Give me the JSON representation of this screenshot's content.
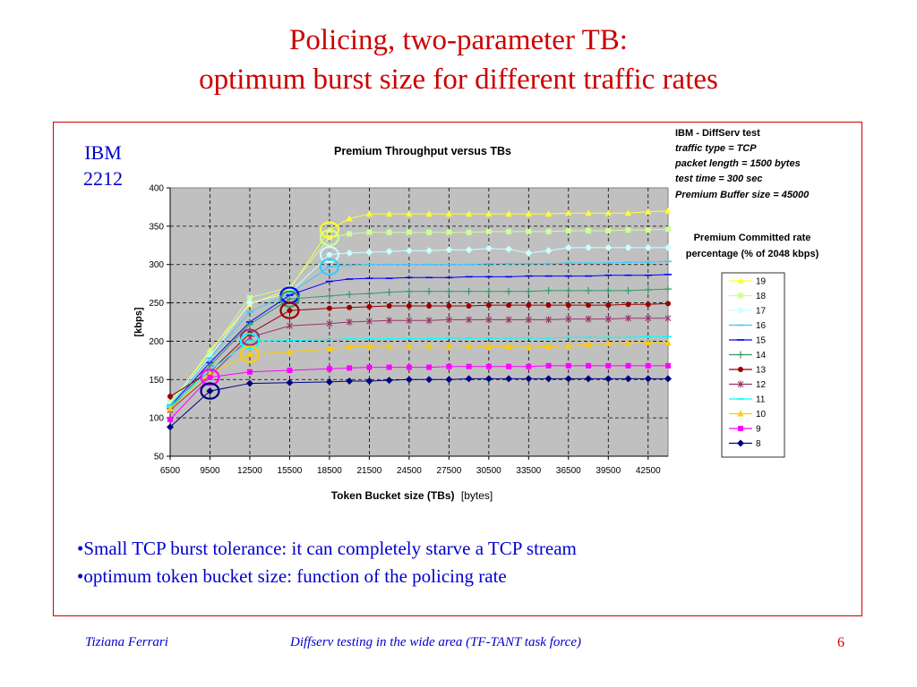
{
  "slide": {
    "title_line1": "Policing, two-parameter TB:",
    "title_line2": "optimum burst size for different traffic rates",
    "label_line1": "IBM",
    "label_line2": "2212",
    "bullets": [
      "•Small TCP burst tolerance: it can completely starve a TCP stream",
      "•optimum token bucket size: function of the policing rate"
    ],
    "footer_left": "Tiziana Ferrari",
    "footer_center": "Diffserv testing in the wide area  (TF-TANT task force)",
    "footer_right": "6"
  },
  "chart_data": {
    "type": "line",
    "title": "Premium Throughput versus TBs",
    "xlabel_bold": "Token Bucket size (TBs)",
    "xlabel_unit": "[bytes]",
    "ylabel": "[kbps]",
    "ylim": [
      50,
      400
    ],
    "yticks": [
      50,
      100,
      150,
      200,
      250,
      300,
      350,
      400
    ],
    "x": [
      6500,
      9500,
      12500,
      15500,
      18500,
      21500,
      24500,
      27500,
      30500,
      33500,
      36500,
      39500,
      42500
    ],
    "x_values": [
      6500,
      9500,
      12500,
      15500,
      18500,
      20000,
      21500,
      23000,
      24500,
      26000,
      27500,
      29000,
      30500,
      32000,
      33500,
      35000,
      36500,
      38000,
      39500,
      41000,
      42500,
      44000
    ],
    "grid": true,
    "plot_background": "#c0c0c0",
    "info_box": [
      "IBM - DiffServ test",
      "traffic type = TCP",
      "packet length = 1500 bytes",
      "test time =  300 sec",
      "Premium Buffer size = 45000"
    ],
    "legend_title_line1": "Premium Committed rate",
    "legend_title_line2": "percentage (% of 2048 kbps)",
    "legend_position": "right",
    "series": [
      {
        "name": "19",
        "color": "#ffff33",
        "marker": "triangle",
        "values": [
          118,
          188,
          248,
          268,
          345,
          360,
          366,
          366,
          366,
          366,
          366,
          366,
          366,
          366,
          366,
          366,
          367,
          367,
          367,
          367,
          369,
          370
        ]
      },
      {
        "name": "18",
        "color": "#ccff99",
        "marker": "square",
        "values": [
          120,
          185,
          257,
          270,
          335,
          340,
          342,
          342,
          342,
          342,
          342,
          342,
          343,
          343,
          343,
          343,
          344,
          344,
          344,
          345,
          345,
          346
        ]
      },
      {
        "name": "17",
        "color": "#ccffff",
        "marker": "diamond",
        "values": [
          118,
          180,
          250,
          263,
          313,
          315,
          316,
          317,
          318,
          318,
          319,
          319,
          321,
          320,
          315,
          318,
          322,
          322,
          322,
          322,
          322,
          322
        ]
      },
      {
        "name": "16",
        "color": "#33ccff",
        "marker": "dash",
        "values": [
          117,
          178,
          238,
          262,
          297,
          299,
          300,
          300,
          300,
          300,
          300,
          300,
          301,
          301,
          301,
          301,
          302,
          302,
          302,
          303,
          303,
          304
        ]
      },
      {
        "name": "15",
        "color": "#0000ff",
        "marker": "dash",
        "values": [
          115,
          172,
          225,
          260,
          278,
          281,
          282,
          282,
          283,
          283,
          283,
          284,
          284,
          284,
          285,
          285,
          285,
          285,
          286,
          286,
          286,
          287
        ]
      },
      {
        "name": "14",
        "color": "#339966",
        "marker": "plus",
        "values": [
          112,
          168,
          222,
          255,
          259,
          261,
          262,
          264,
          265,
          265,
          265,
          265,
          265,
          265,
          265,
          266,
          266,
          266,
          266,
          266,
          267,
          268
        ]
      },
      {
        "name": "13",
        "color": "#990000",
        "marker": "circle",
        "values": [
          128,
          160,
          210,
          240,
          243,
          244,
          245,
          246,
          246,
          246,
          246,
          246,
          247,
          247,
          247,
          247,
          247,
          247,
          247,
          248,
          248,
          249
        ]
      },
      {
        "name": "12",
        "color": "#993366",
        "marker": "star",
        "values": [
          110,
          155,
          205,
          220,
          223,
          225,
          226,
          227,
          227,
          227,
          228,
          228,
          228,
          228,
          228,
          228,
          229,
          229,
          229,
          230,
          230,
          230
        ]
      },
      {
        "name": "11",
        "color": "#00ffff",
        "marker": "dash",
        "values": [
          115,
          162,
          200,
          201,
          202,
          203,
          203,
          203,
          203,
          203,
          204,
          204,
          204,
          204,
          204,
          204,
          205,
          205,
          205,
          205,
          206,
          206
        ]
      },
      {
        "name": "10",
        "color": "#ffcc00",
        "marker": "triangle",
        "values": [
          112,
          158,
          183,
          186,
          190,
          193,
          193,
          194,
          194,
          194,
          194,
          194,
          193,
          193,
          192,
          193,
          194,
          196,
          197,
          197,
          198,
          198
        ]
      },
      {
        "name": "9",
        "color": "#ff00ff",
        "marker": "square",
        "values": [
          98,
          153,
          160,
          162,
          164,
          165,
          166,
          166,
          166,
          166,
          167,
          167,
          167,
          167,
          167,
          168,
          168,
          168,
          168,
          168,
          168,
          168
        ]
      },
      {
        "name": "8",
        "color": "#000080",
        "marker": "diamond",
        "values": [
          88,
          135,
          145,
          146,
          147,
          148,
          148,
          149,
          150,
          150,
          150,
          151,
          151,
          151,
          151,
          151,
          151,
          151,
          151,
          151,
          151,
          151
        ]
      }
    ],
    "highlights": [
      {
        "series": "19",
        "x": 18500,
        "color": "#ffff33"
      },
      {
        "series": "18",
        "x": 18500,
        "color": "#ccff99"
      },
      {
        "series": "17",
        "x": 18500,
        "color": "#ccffff"
      },
      {
        "series": "16",
        "x": 18500,
        "color": "#33ccff"
      },
      {
        "series": "15",
        "x": 15500,
        "color": "#0000ff"
      },
      {
        "series": "14",
        "x": 15500,
        "color": "#339966"
      },
      {
        "series": "13",
        "x": 15500,
        "color": "#990000"
      },
      {
        "series": "12",
        "x": 12500,
        "color": "#993366"
      },
      {
        "series": "11",
        "x": 12500,
        "color": "#00ffff"
      },
      {
        "series": "10",
        "x": 12500,
        "color": "#ffcc00"
      },
      {
        "series": "9",
        "x": 9500,
        "color": "#ff00ff"
      },
      {
        "series": "8",
        "x": 9500,
        "color": "#000080"
      }
    ]
  }
}
